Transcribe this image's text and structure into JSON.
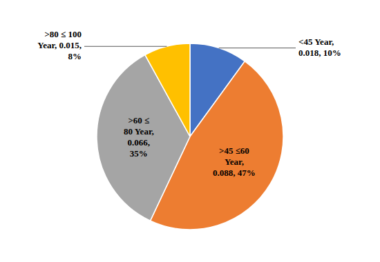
{
  "chart_data": {
    "type": "pie",
    "values": [
      10,
      47,
      35,
      8
    ],
    "value_labels": [
      "<45 Year,\n0.018, 10%",
      ">45 ≤60\nYear,\n0.088, 47%",
      ">60 ≤\n80 Year,\n0.066,\n35%",
      ">80 ≤ 100\nYear, 0.015,\n8%"
    ],
    "colors": [
      "#4472C4",
      "#ED7D31",
      "#A5A5A5",
      "#FFC000"
    ],
    "data_labels": true
  }
}
